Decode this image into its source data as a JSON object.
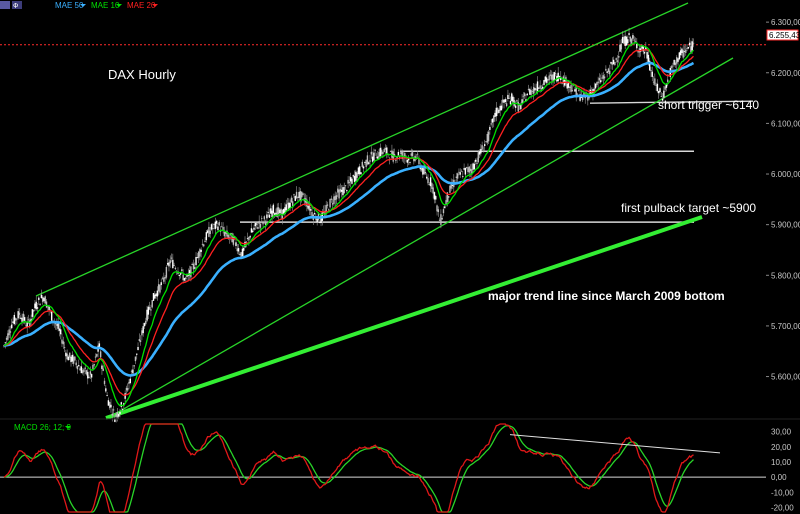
{
  "toolbar": {
    "icon": "chart-settings-icon"
  },
  "chart_data": {
    "type": "line",
    "title": "DAX Hourly",
    "price_axis": {
      "ticks": [
        "6.300,00",
        "6.200,00",
        "6.100,00",
        "6.000,00",
        "5.900,00",
        "5.800,00",
        "5.700,00",
        "5.600,00"
      ],
      "tick_values": [
        6300,
        6200,
        6100,
        6000,
        5900,
        5800,
        5700,
        5600
      ],
      "ylim": [
        5530,
        6320
      ]
    },
    "last_price": {
      "label": "6.255,43",
      "value": 6255.43,
      "color": "#ff2a2a"
    },
    "legend": [
      {
        "name": "MAE 50",
        "color": "#3ab0ff"
      },
      {
        "name": "MAE 10",
        "color": "#00e000"
      },
      {
        "name": "MAE 20",
        "color": "#ff2020"
      }
    ],
    "series": [
      {
        "name": "DAX",
        "x": [
          0,
          8,
          16,
          24,
          32,
          40,
          48,
          56,
          64,
          72,
          80,
          88,
          96,
          104,
          112,
          120,
          128,
          136,
          144,
          152,
          160,
          168,
          176,
          184,
          192,
          200,
          208,
          216,
          224,
          232,
          240,
          248,
          256,
          264,
          272,
          280,
          288,
          296,
          304,
          312,
          320,
          328,
          336,
          344,
          352,
          360,
          368,
          376,
          384,
          392,
          400,
          408,
          416,
          424,
          432,
          440,
          448,
          456,
          464,
          472,
          480,
          488,
          496,
          504,
          512,
          520,
          528,
          536,
          544,
          552,
          560,
          568,
          576,
          584,
          592,
          600,
          608,
          616,
          624,
          632,
          640,
          648,
          656,
          664,
          672,
          680,
          688,
          696
        ],
        "values": [
          5660,
          5705,
          5725,
          5700,
          5740,
          5760,
          5720,
          5690,
          5640,
          5630,
          5610,
          5600,
          5660,
          5560,
          5520,
          5545,
          5600,
          5660,
          5720,
          5760,
          5785,
          5830,
          5810,
          5790,
          5820,
          5860,
          5890,
          5900,
          5880,
          5870,
          5840,
          5880,
          5900,
          5910,
          5930,
          5920,
          5940,
          5960,
          5950,
          5920,
          5910,
          5940,
          5960,
          5970,
          5990,
          6010,
          6030,
          6040,
          6045,
          6035,
          6040,
          6030,
          6035,
          6000,
          5980,
          5905,
          5960,
          5990,
          6005,
          6010,
          6040,
          6070,
          6120,
          6140,
          6150,
          6130,
          6160,
          6170,
          6180,
          6190,
          6195,
          6180,
          6165,
          6150,
          6160,
          6180,
          6200,
          6220,
          6260,
          6270,
          6250,
          6240,
          6180,
          6150,
          6200,
          6230,
          6245,
          6255
        ]
      }
    ],
    "moving_averages": [
      {
        "name": "MAE 50",
        "color": "#3ab0ff"
      },
      {
        "name": "MAE 20",
        "color": "#ff2020"
      },
      {
        "name": "MAE 10",
        "color": "#00e000"
      }
    ],
    "channel_color": "#28d428",
    "main_trend_color": "#33ee33",
    "annotations": [
      {
        "text": "short trigger ~6140",
        "level": 6140
      },
      {
        "text": "first pulback target ~5900",
        "level": 5905
      },
      {
        "text": "major trend line since March 2009 bottom",
        "bold": true
      }
    ],
    "support_lines": [
      6140,
      6045,
      5905
    ],
    "indicator": {
      "title": "MACD 26; 12; 9",
      "title_color": "#00e000",
      "ticks": [
        "30,00",
        "20,00",
        "10,00",
        "0,00",
        "-10,00",
        "-20,00"
      ],
      "tick_values": [
        30,
        20,
        10,
        0,
        -10,
        -20
      ],
      "ylim": [
        -23,
        35
      ],
      "macd_color": "#e01818",
      "signal_color": "#28d428",
      "divergence_line": {
        "from": 28,
        "to": 16
      }
    }
  }
}
